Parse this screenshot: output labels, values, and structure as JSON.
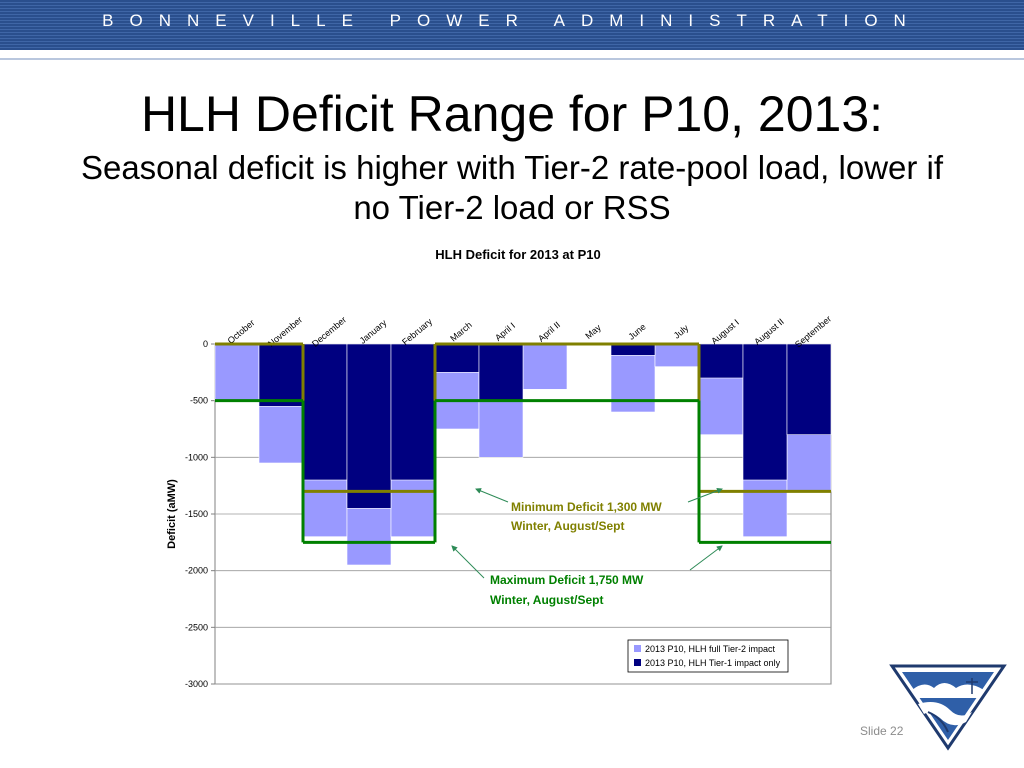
{
  "header": {
    "org_name": "BONNEVILLE POWER ADMINISTRATION"
  },
  "slide": {
    "title": "HLH Deficit Range for P10, 2013:",
    "subtitle": "Seasonal deficit is higher with Tier-2 rate-pool load, lower if no Tier-2 load or RSS",
    "slide_number": "Slide 22"
  },
  "colors": {
    "banner": "#2a4f8d",
    "tier2_bar": "#9999ff",
    "tier1_bar": "#000080",
    "min_line": "#808000",
    "max_line": "#008000"
  },
  "chart_data": {
    "type": "bar",
    "title": "HLH Deficit for 2013 at P10",
    "ylabel": "Deficit (aMW)",
    "xlabel": "",
    "ylim": [
      -3000,
      0
    ],
    "yticks": [
      0,
      -500,
      -1000,
      -1500,
      -2000,
      -2500,
      -3000
    ],
    "grid": true,
    "legend_position": "bottom-right",
    "categories": [
      "October",
      "November",
      "December",
      "January",
      "February",
      "March",
      "April I",
      "April II",
      "May",
      "June",
      "July",
      "August I",
      "August II",
      "September"
    ],
    "series": [
      {
        "name": "2013 P10, HLH full Tier-2 impact",
        "color": "#9999ff",
        "values": [
          -500,
          -1050,
          -1700,
          -1950,
          -1700,
          -750,
          -1000,
          -400,
          0,
          -600,
          -200,
          -800,
          -1700,
          -1300
        ]
      },
      {
        "name": "2013 P10, HLH Tier-1 impact only",
        "color": "#000080",
        "values": [
          0,
          -550,
          -1200,
          -1450,
          -1200,
          -250,
          -500,
          0,
          0,
          -100,
          0,
          -300,
          -1200,
          -800
        ]
      }
    ],
    "reference_lines": [
      {
        "label": "Minimum Deficit",
        "color": "#808000",
        "segments": [
          [
            0,
            2,
            0
          ],
          [
            2,
            5,
            -1300
          ],
          [
            5,
            9,
            0
          ],
          [
            9,
            11,
            0
          ],
          [
            11,
            14,
            -1300
          ]
        ]
      },
      {
        "label": "Maximum Deficit",
        "color": "#008000",
        "segments": [
          [
            0,
            2,
            -500
          ],
          [
            2,
            5,
            -1750
          ],
          [
            5,
            9,
            -500
          ],
          [
            9,
            11,
            -500
          ],
          [
            11,
            14,
            -1750
          ]
        ]
      }
    ],
    "annotations": [
      {
        "line1": "Minimum Deficit 1,300 MW",
        "line2": "Winter, August/Sept",
        "color": "#808000"
      },
      {
        "line1": "Maximum Deficit 1,750 MW",
        "line2": "Winter, August/Sept",
        "color": "#008000"
      }
    ]
  }
}
